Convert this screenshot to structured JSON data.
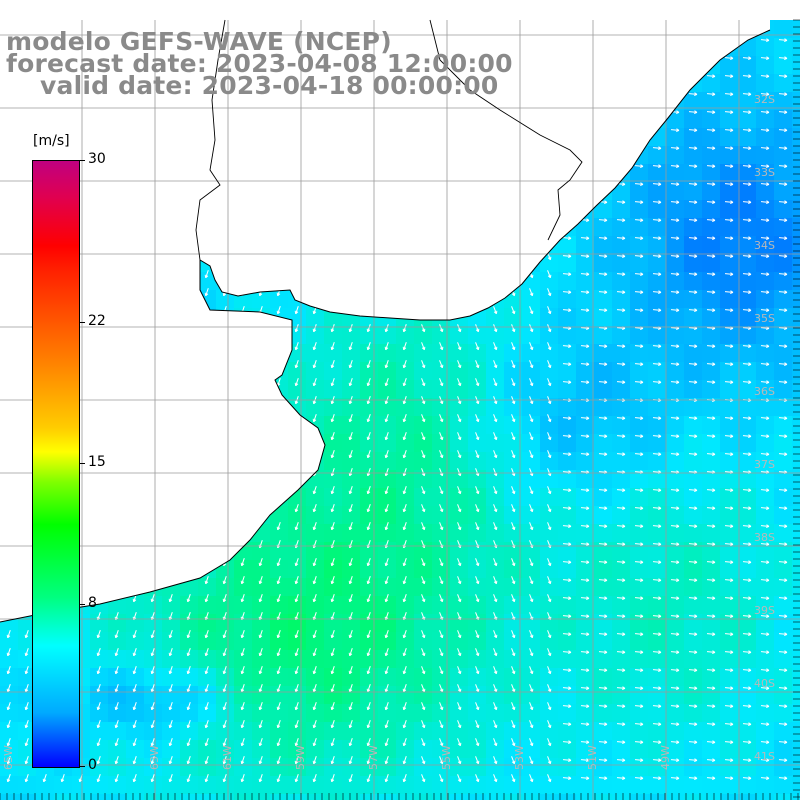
{
  "title": {
    "line1": "modelo GEFS-WAVE (NCEP)",
    "line2": "forecast date: 2023-04-08 12:00:00",
    "line3": "valid date: 2023-04-18 00:00:00"
  },
  "colorbar": {
    "unit": "[m/s]",
    "min": 0,
    "max": 30,
    "tick_labels": [
      "30",
      "22",
      "15",
      "8",
      "0"
    ],
    "tick_values": [
      30,
      22,
      15,
      8,
      0
    ],
    "palette": [
      "#0000ff",
      "#00aaff",
      "#00ffff",
      "#00ff80",
      "#00ff00",
      "#ffff00",
      "#ff8000",
      "#ff0000",
      "#c00080"
    ]
  },
  "map": {
    "lat_labels": [
      "32S",
      "33S",
      "34S",
      "35S",
      "36S",
      "37S",
      "38S",
      "39S",
      "40S",
      "41S"
    ],
    "lon_labels": [
      "65W",
      "63W",
      "61W",
      "59W",
      "57W",
      "55W",
      "53W",
      "51W",
      "49W"
    ],
    "ocean_low_color": "#0050ff",
    "ocean_mid_color": "#00e8ff",
    "ocean_high_color": "#00ff30",
    "land_color": "#ffffff",
    "grid_color": "#9a9a9a",
    "coast_color": "#000000",
    "arrow_color": "#ffffff"
  }
}
